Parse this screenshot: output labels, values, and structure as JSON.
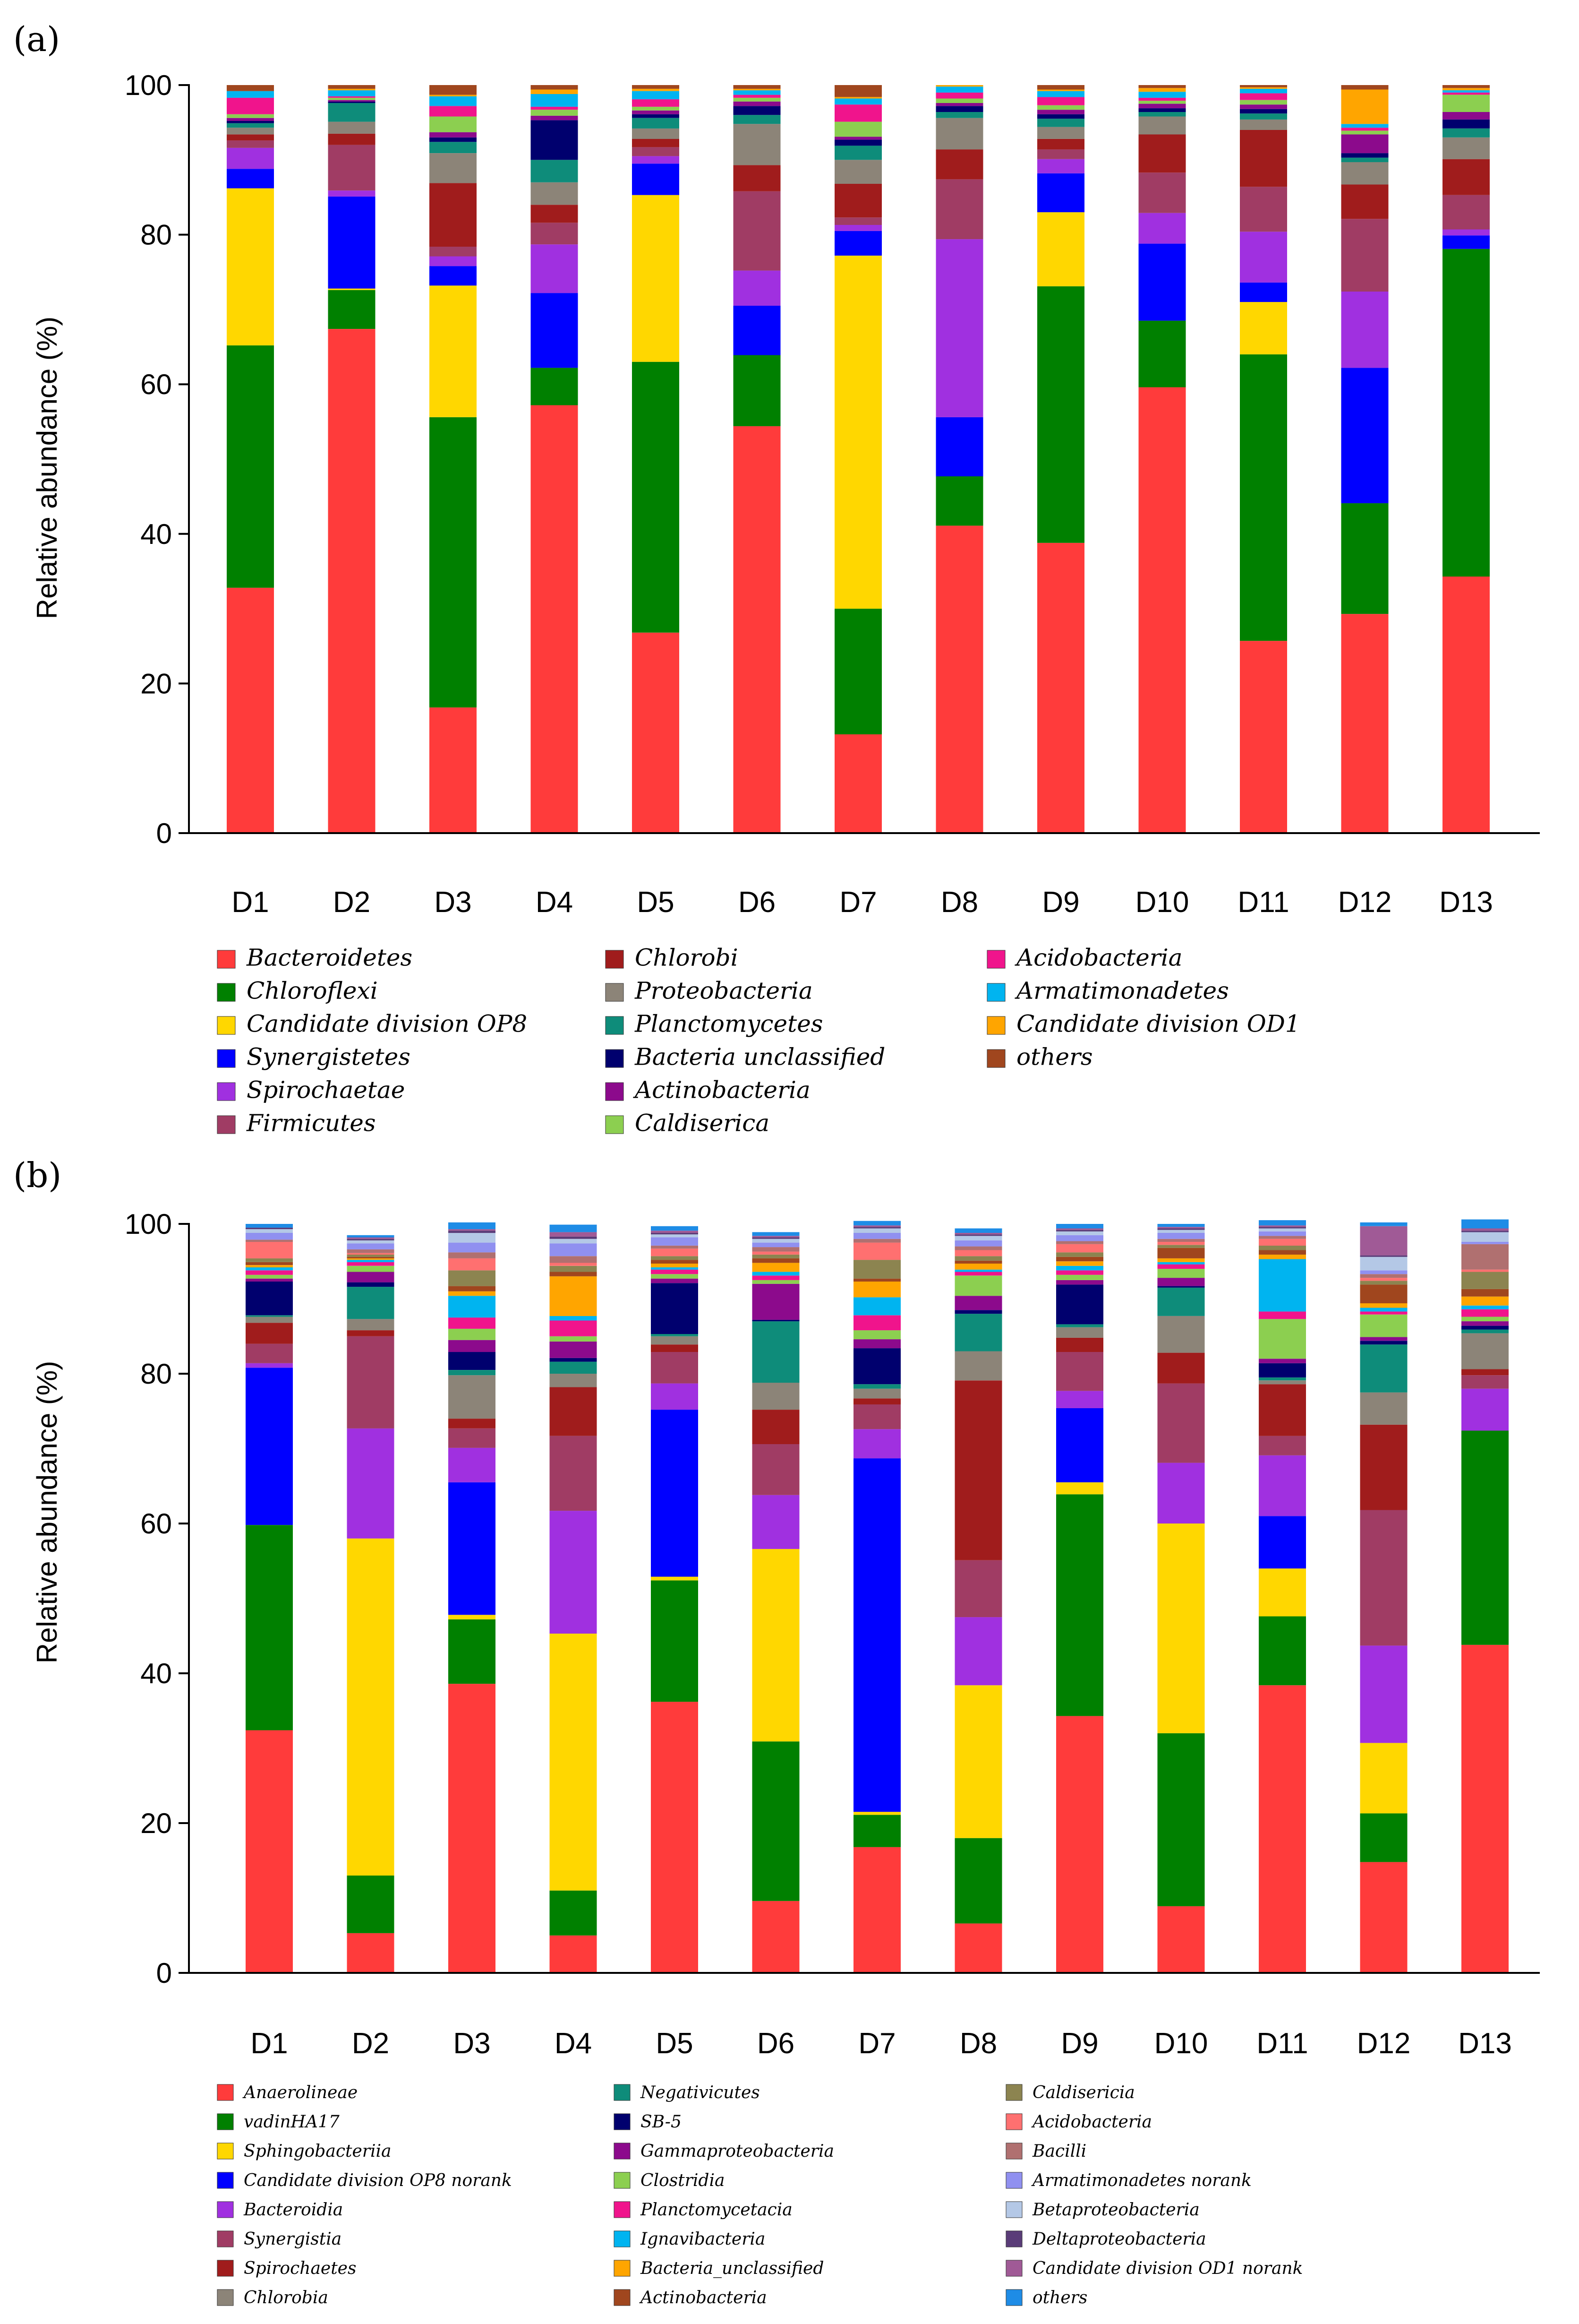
{
  "chart_data": [
    {
      "panel": "(a)",
      "type": "bar",
      "stacked": true,
      "title": "",
      "xlabel": "",
      "ylabel": "Relative abundance (%)",
      "ylim": [
        0,
        100
      ],
      "yticks": [
        "0",
        "20",
        "40",
        "60",
        "80",
        "100"
      ],
      "grid": false,
      "legend_position": "bottom",
      "categories": [
        "D1",
        "D2",
        "D3",
        "D4",
        "D5",
        "D6",
        "D7",
        "D8",
        "D9",
        "D10",
        "D11",
        "D12",
        "D13"
      ],
      "series": [
        {
          "name": "Bacteroidetes",
          "color": "#FF3B3B",
          "values": [
            32.8,
            67.4,
            16.8,
            57.2,
            26.8,
            54.4,
            13.2,
            41.1,
            38.8,
            59.6,
            25.7,
            29.3,
            34.3
          ]
        },
        {
          "name": "Chloroflexi",
          "color": "#008000",
          "values": [
            32.4,
            5.2,
            38.8,
            5.0,
            36.2,
            9.5,
            16.8,
            6.6,
            34.3,
            8.9,
            38.3,
            14.8,
            43.8
          ]
        },
        {
          "name": "Candidate division OP8",
          "color": "#FFD700",
          "values": [
            21.0,
            0.2,
            17.6,
            0,
            22.3,
            0,
            47.2,
            0,
            9.9,
            0,
            7.0,
            0,
            0
          ]
        },
        {
          "name": "Synergistetes",
          "color": "#0000FF",
          "values": [
            2.6,
            12.3,
            2.6,
            10.0,
            4.2,
            6.6,
            3.3,
            7.9,
            5.2,
            10.3,
            2.6,
            18.1,
            1.8
          ]
        },
        {
          "name": "Spirochaetae",
          "color": "#A030E0",
          "values": [
            2.8,
            0.8,
            1.3,
            6.5,
            1.0,
            4.7,
            0.8,
            23.8,
            1.9,
            4.1,
            6.8,
            10.2,
            0.8
          ]
        },
        {
          "name": "Firmicutes",
          "color": "#A03C64",
          "values": [
            1.0,
            6.1,
            1.3,
            2.9,
            1.2,
            10.6,
            1.0,
            8.0,
            1.3,
            5.4,
            6.0,
            9.7,
            4.6
          ]
        },
        {
          "name": "Chlorobi",
          "color": "#A01C1C",
          "values": [
            0.8,
            1.5,
            8.5,
            2.4,
            1.1,
            3.5,
            4.5,
            4.0,
            1.4,
            5.1,
            7.6,
            4.6,
            4.8
          ]
        },
        {
          "name": "Proteobacteria",
          "color": "#8C8478",
          "values": [
            0.9,
            1.6,
            4.0,
            3.0,
            1.4,
            5.5,
            3.2,
            4.2,
            1.6,
            2.4,
            1.4,
            3.0,
            2.9
          ]
        },
        {
          "name": "Planctomycetes",
          "color": "#0E8C7A",
          "values": [
            0.6,
            2.5,
            1.5,
            3.0,
            1.4,
            1.2,
            1.9,
            0.8,
            1.1,
            0.6,
            0.8,
            0.6,
            1.2
          ]
        },
        {
          "name": "Bacteria unclassified",
          "color": "#00006E",
          "values": [
            0.3,
            0.2,
            0.6,
            5.3,
            0.5,
            1.2,
            0.8,
            0.8,
            0.6,
            0.5,
            0.6,
            0.6,
            1.2
          ]
        },
        {
          "name": "Actinobacteria",
          "color": "#8C0A8C",
          "values": [
            0.4,
            0.2,
            0.7,
            0.6,
            0.5,
            0.6,
            0.4,
            0.4,
            0.6,
            0.6,
            0.6,
            2.5,
            1.0
          ]
        },
        {
          "name": "Caldiserica",
          "color": "#8CCF50",
          "values": [
            0.5,
            0.3,
            2.1,
            0.8,
            0.5,
            0.5,
            2.0,
            0.6,
            0.6,
            0.4,
            0.6,
            0.5,
            2.3
          ]
        },
        {
          "name": "Acidobacteria",
          "color": "#F0148C",
          "values": [
            2.2,
            0.2,
            1.4,
            0.4,
            1.0,
            0.4,
            2.3,
            0.8,
            1.1,
            0.4,
            0.9,
            0.4,
            0.3
          ]
        },
        {
          "name": "Armatimonadetes",
          "color": "#00B4F0",
          "values": [
            0.9,
            0.8,
            1.3,
            1.7,
            1.1,
            0.6,
            0.8,
            0.8,
            0.8,
            0.8,
            0.6,
            0.5,
            0.3
          ]
        },
        {
          "name": "Candidate division OD1",
          "color": "#FFA500",
          "values": [
            0,
            0.2,
            0.2,
            0.6,
            0.3,
            0.2,
            0.2,
            0.2,
            0.2,
            0.5,
            0.2,
            4.6,
            0.3
          ]
        },
        {
          "name": "others",
          "color": "#A0461E",
          "values": [
            0.8,
            0.5,
            1.3,
            0.6,
            0.5,
            0.5,
            1.6,
            0.0,
            0.6,
            0.4,
            0.3,
            0.6,
            0.4
          ]
        }
      ]
    },
    {
      "panel": "(b)",
      "type": "bar",
      "stacked": true,
      "title": "",
      "xlabel": "",
      "ylabel": "Relative abundance (%)",
      "ylim": [
        0,
        100
      ],
      "yticks": [
        "0",
        "20",
        "40",
        "60",
        "80",
        "100"
      ],
      "grid": false,
      "legend_position": "bottom",
      "categories": [
        "D1",
        "D2",
        "D3",
        "D4",
        "D5",
        "D6",
        "D7",
        "D8",
        "D9",
        "D10",
        "D11",
        "D12",
        "D13"
      ],
      "series": [
        {
          "name": "Anaerolineae",
          "color": "#FF3B3B",
          "values": [
            32.4,
            5.3,
            38.6,
            5.0,
            36.2,
            9.6,
            16.8,
            6.6,
            34.3,
            8.9,
            38.4,
            14.8,
            43.8
          ]
        },
        {
          "name": "vadinHA17",
          "color": "#008000",
          "values": [
            27.4,
            7.7,
            8.6,
            6.0,
            16.2,
            21.3,
            4.3,
            11.4,
            29.6,
            23.1,
            9.2,
            6.5,
            28.6
          ]
        },
        {
          "name": "Sphingobacteriia",
          "color": "#FFD700",
          "values": [
            0,
            45.0,
            0.6,
            34.3,
            0.5,
            25.7,
            0.4,
            20.4,
            1.6,
            28.0,
            6.4,
            9.4,
            0
          ]
        },
        {
          "name": "Candidate division OP8 norank",
          "color": "#0000FF",
          "values": [
            21.0,
            0,
            17.7,
            0,
            22.3,
            0,
            47.2,
            0,
            9.9,
            0,
            7.0,
            0,
            0
          ]
        },
        {
          "name": "Bacteroidia",
          "color": "#A030E0",
          "values": [
            0.6,
            14.7,
            4.6,
            16.4,
            3.5,
            7.2,
            3.9,
            9.1,
            2.3,
            8.1,
            8.1,
            13.0,
            5.6
          ]
        },
        {
          "name": "Synergistia",
          "color": "#A03C64",
          "values": [
            2.6,
            12.3,
            2.6,
            10.0,
            4.2,
            6.8,
            3.3,
            7.6,
            5.2,
            10.6,
            2.6,
            18.1,
            1.8
          ]
        },
        {
          "name": "Spirochaetes",
          "color": "#A01C1C",
          "values": [
            2.8,
            0.8,
            1.3,
            6.5,
            1.0,
            4.6,
            0.8,
            24.0,
            1.9,
            4.1,
            6.9,
            11.4,
            0.8
          ]
        },
        {
          "name": "Chlorobia",
          "color": "#8C8478",
          "values": [
            0.8,
            1.5,
            5.8,
            1.8,
            1.1,
            3.6,
            1.3,
            3.9,
            1.4,
            4.9,
            0.5,
            4.3,
            4.8
          ]
        },
        {
          "name": "Negativicutes",
          "color": "#0E8C7A",
          "values": [
            0.2,
            4.3,
            0.7,
            1.6,
            0.3,
            8.2,
            0.6,
            5.0,
            0.4,
            3.8,
            0.4,
            6.4,
            0.5
          ]
        },
        {
          "name": "SB-5",
          "color": "#00006E",
          "values": [
            4.5,
            0.6,
            2.4,
            0.5,
            6.8,
            0.2,
            4.8,
            0.5,
            5.3,
            0.2,
            1.9,
            0.5,
            0.5
          ]
        },
        {
          "name": "Gammaproteobacteria",
          "color": "#8C0A8C",
          "values": [
            0.4,
            1.4,
            1.6,
            2.2,
            0.6,
            4.8,
            1.2,
            1.9,
            0.6,
            1.1,
            0.6,
            0.5,
            0.6
          ]
        },
        {
          "name": "Clostridia",
          "color": "#8CCF50",
          "values": [
            0.5,
            0.8,
            1.5,
            0.7,
            0.6,
            0.5,
            1.2,
            2.7,
            0.7,
            1.2,
            5.3,
            3.0,
            0.6
          ]
        },
        {
          "name": "Planctomycetacia",
          "color": "#F0148C",
          "values": [
            0.6,
            0.5,
            1.5,
            2.1,
            0.6,
            0.6,
            2.0,
            0.5,
            0.6,
            0.6,
            1.0,
            0.4,
            1.0
          ]
        },
        {
          "name": "Ignavibacteria",
          "color": "#00B4F0",
          "values": [
            0.4,
            0.3,
            2.9,
            0.6,
            0.3,
            0.5,
            2.4,
            0.3,
            0.6,
            0.3,
            7.0,
            0.5,
            0.5
          ]
        },
        {
          "name": "Bacteria_unclassified",
          "color": "#FFA500",
          "values": [
            0.3,
            0.2,
            0.6,
            5.3,
            0.5,
            1.2,
            2.1,
            0.8,
            0.6,
            0.5,
            0.6,
            0.6,
            1.2
          ]
        },
        {
          "name": "Actinobacteria",
          "color": "#A0461E",
          "values": [
            0.4,
            0.2,
            0.7,
            0.6,
            0.5,
            0.6,
            0.4,
            0.4,
            0.6,
            1.4,
            0.6,
            2.5,
            1.0
          ]
        },
        {
          "name": "Caldisericia",
          "color": "#8C8450",
          "values": [
            0.5,
            0.3,
            2.1,
            0.8,
            0.5,
            0.5,
            2.5,
            0.6,
            0.6,
            0.4,
            0.6,
            0.5,
            2.3
          ]
        },
        {
          "name": "Acidobacteria",
          "color": "#FF7070",
          "values": [
            2.2,
            0.2,
            1.6,
            0.4,
            1.0,
            0.4,
            2.3,
            0.8,
            1.1,
            0.4,
            0.9,
            0.4,
            0.3
          ]
        },
        {
          "name": "Bacilli",
          "color": "#B07070",
          "values": [
            0.3,
            0.5,
            0.8,
            0.9,
            0.4,
            0.6,
            0.5,
            0.5,
            0.4,
            0.4,
            0.4,
            0.5,
            3.4
          ]
        },
        {
          "name": "Armatimonadetes norank",
          "color": "#9090F0",
          "values": [
            0.9,
            0.8,
            1.3,
            1.7,
            1.1,
            0.6,
            0.8,
            0.8,
            0.8,
            0.8,
            0.6,
            0.5,
            0.3
          ]
        },
        {
          "name": "Betaproteobacteria",
          "color": "#B4C8E6",
          "values": [
            0.5,
            0.4,
            1.3,
            0.6,
            0.4,
            0.5,
            0.6,
            0.6,
            0.5,
            0.4,
            0.4,
            1.8,
            1.3
          ]
        },
        {
          "name": "Deltaproteobacteria",
          "color": "#5A3C78",
          "values": [
            0.2,
            0.2,
            0.3,
            0.3,
            0.2,
            0.2,
            0.2,
            0.2,
            0.2,
            0.2,
            0.2,
            0.2,
            0.2
          ]
        },
        {
          "name": "Candidate division OD1 norank",
          "color": "#A05A96",
          "values": [
            0,
            0.2,
            0.2,
            0.6,
            0.3,
            0.2,
            0.2,
            0.2,
            0.2,
            0.2,
            0.2,
            3.9,
            0.3
          ]
        },
        {
          "name": "others",
          "color": "#1E8CE6",
          "values": [
            0.5,
            0.3,
            0.9,
            1.0,
            0.6,
            0.5,
            0.6,
            0.6,
            0.6,
            0.4,
            0.7,
            0.5,
            1.2
          ]
        }
      ]
    }
  ]
}
